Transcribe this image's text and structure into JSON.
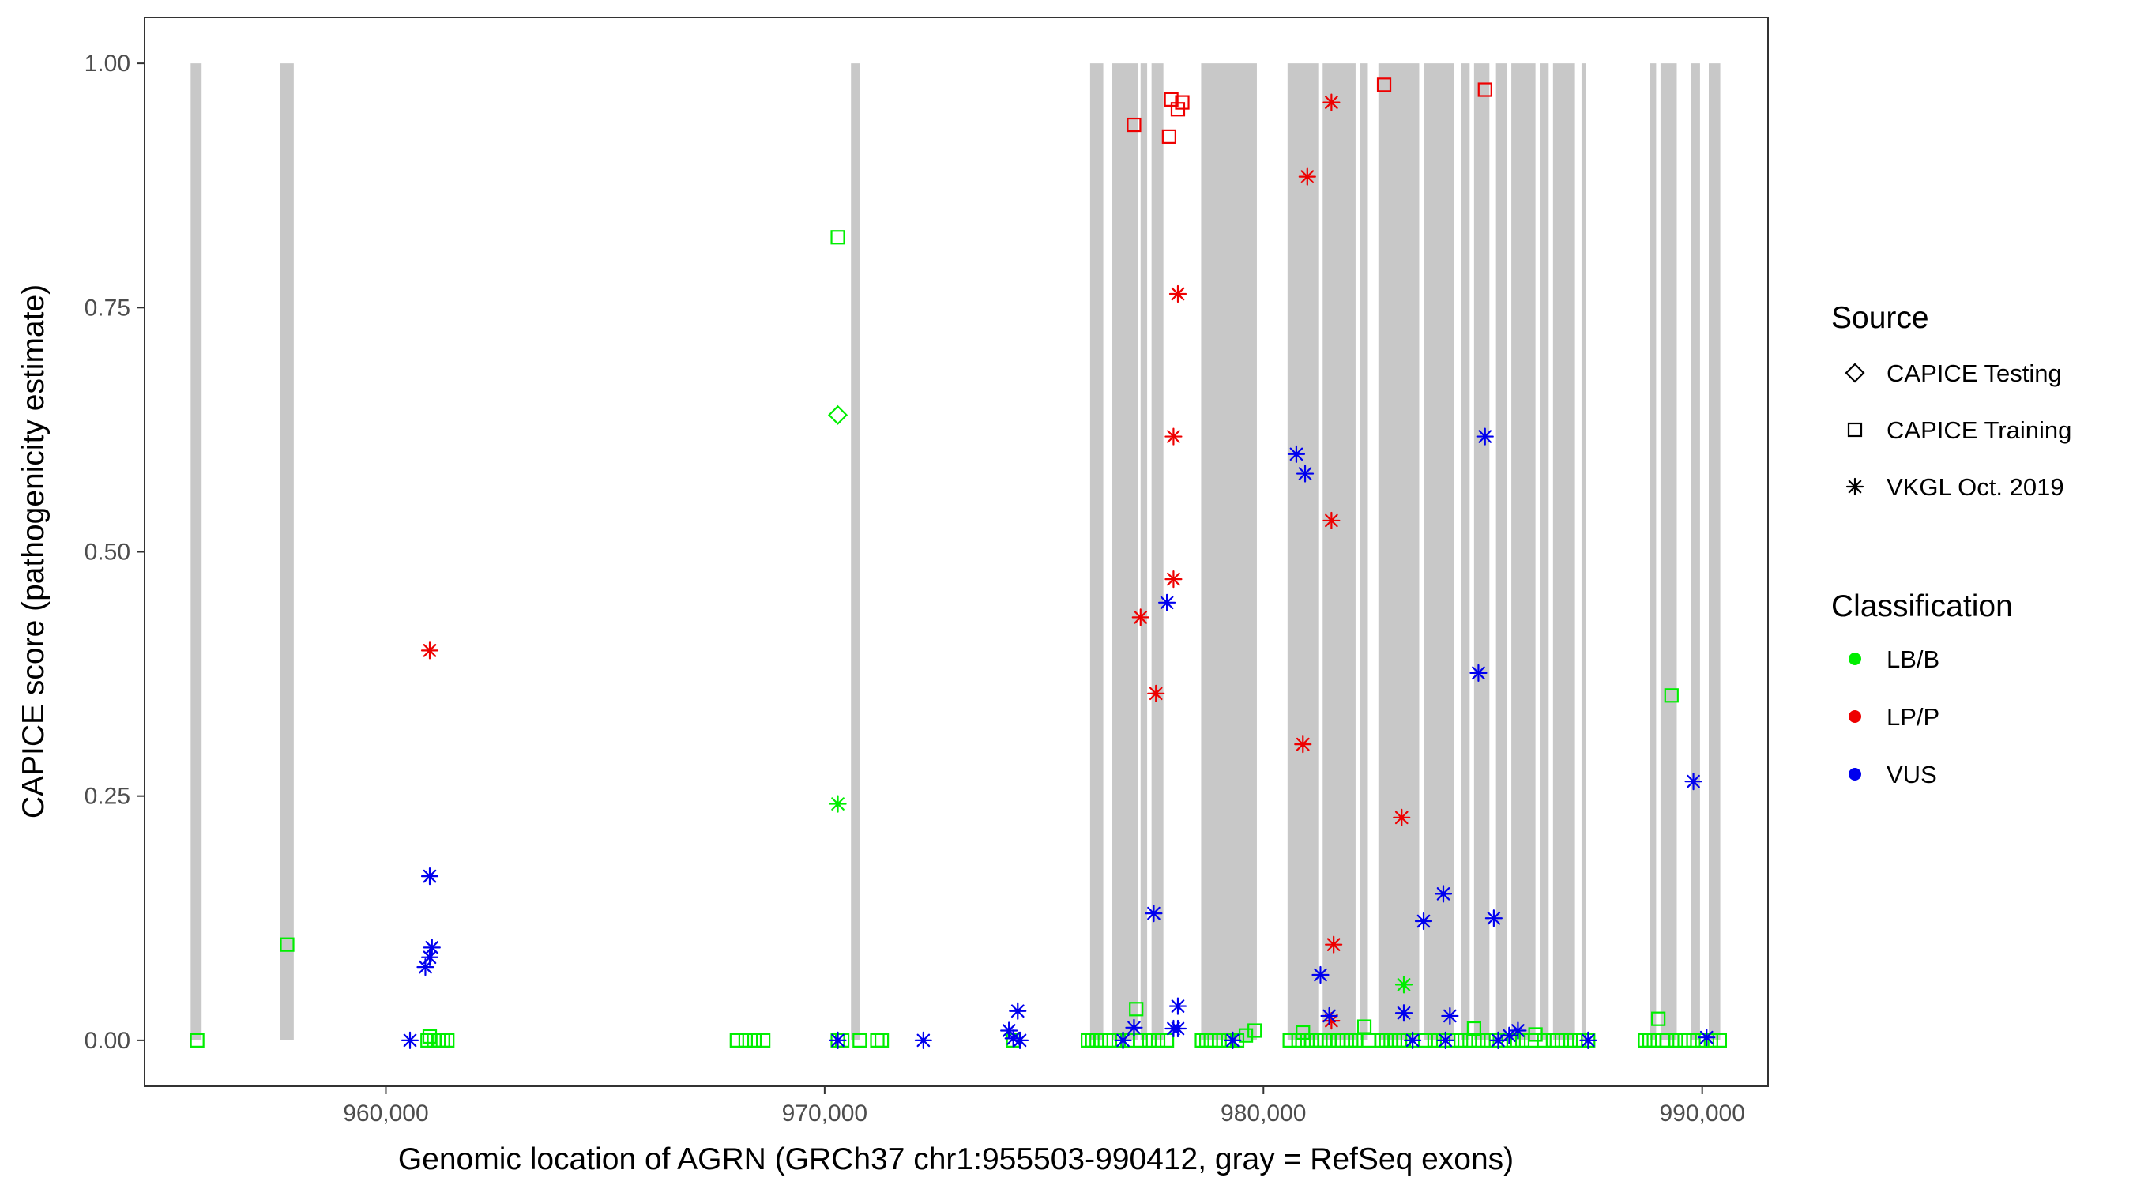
{
  "chart_data": {
    "type": "scatter",
    "xlabel": "Genomic location of AGRN (GRCh37 chr1:955503-990412, gray = RefSeq exons)",
    "ylabel": "CAPICE score (pathogenicity estimate)",
    "xlim": [
      954500,
      991500
    ],
    "ylim": [
      -0.047,
      1.047
    ],
    "x_ticks": [
      960000,
      970000,
      980000,
      990000
    ],
    "x_tick_labels": [
      "960,000",
      "970,000",
      "980,000",
      "990,000"
    ],
    "y_ticks": [
      0,
      0.25,
      0.5,
      0.75,
      1.0
    ],
    "y_tick_labels": [
      "0.00",
      "0.25",
      "0.50",
      "0.75",
      "1.00"
    ],
    "grid": false,
    "legend_position": "right",
    "exon_color": "#c8c8c8",
    "exons": [
      [
        955550,
        955800
      ],
      [
        957580,
        957900
      ],
      [
        970600,
        970800
      ],
      [
        976050,
        976350
      ],
      [
        976550,
        977150
      ],
      [
        977200,
        977350
      ],
      [
        977450,
        977720
      ],
      [
        978580,
        979850
      ],
      [
        980550,
        981250
      ],
      [
        981350,
        982100
      ],
      [
        982200,
        982380
      ],
      [
        982620,
        983550
      ],
      [
        983650,
        984350
      ],
      [
        984500,
        984700
      ],
      [
        984800,
        985150
      ],
      [
        985300,
        985550
      ],
      [
        985650,
        986200
      ],
      [
        986300,
        986500
      ],
      [
        986600,
        987100
      ],
      [
        987250,
        987350
      ],
      [
        988800,
        988950
      ],
      [
        989050,
        989420
      ],
      [
        989750,
        989950
      ],
      [
        990150,
        990412
      ]
    ],
    "legend": {
      "source_title": "Source",
      "source_items": [
        {
          "label": "CAPICE Testing",
          "shape": "diamond"
        },
        {
          "label": "CAPICE Training",
          "shape": "square"
        },
        {
          "label": "VKGL Oct. 2019",
          "shape": "asterisk"
        }
      ],
      "class_title": "Classification",
      "class_items": [
        {
          "label": "LB/B",
          "color": "#00ee00"
        },
        {
          "label": "LP/P",
          "color": "#ee0000"
        },
        {
          "label": "VUS",
          "color": "#0000ee"
        }
      ]
    },
    "colors": {
      "LB/B": "#00ee00",
      "LP/P": "#ee0000",
      "VUS": "#0000ee"
    },
    "series": [
      {
        "shape": "square",
        "class": "LB/B",
        "points": [
          [
            955700,
            0.0
          ],
          [
            957750,
            0.098
          ],
          [
            960950,
            0.0
          ],
          [
            961000,
            0.004
          ],
          [
            961100,
            0.0
          ],
          [
            961200,
            0.0
          ],
          [
            961300,
            0.0
          ],
          [
            961400,
            0.0
          ],
          [
            968000,
            0.0
          ],
          [
            968200,
            0.0
          ],
          [
            968400,
            0.0
          ],
          [
            968600,
            0.0
          ],
          [
            970300,
            0.822
          ],
          [
            970300,
            0.0
          ],
          [
            970400,
            0.0
          ],
          [
            970800,
            0.0
          ],
          [
            971200,
            0.0
          ],
          [
            971300,
            0.0
          ],
          [
            974300,
            0.0
          ],
          [
            976000,
            0.0
          ],
          [
            976100,
            0.0
          ],
          [
            976200,
            0.0
          ],
          [
            976300,
            0.0
          ],
          [
            976500,
            0.0
          ],
          [
            976700,
            0.0
          ],
          [
            976900,
            0.0
          ],
          [
            977100,
            0.032
          ],
          [
            977200,
            0.0
          ],
          [
            977400,
            0.0
          ],
          [
            977600,
            0.0
          ],
          [
            977800,
            0.0
          ],
          [
            978600,
            0.0
          ],
          [
            978700,
            0.0
          ],
          [
            978800,
            0.0
          ],
          [
            979000,
            0.0
          ],
          [
            979200,
            0.0
          ],
          [
            979400,
            0.0
          ],
          [
            979600,
            0.005
          ],
          [
            979800,
            0.01
          ],
          [
            980600,
            0.0
          ],
          [
            980800,
            0.0
          ],
          [
            980900,
            0.008
          ],
          [
            981000,
            0.0
          ],
          [
            981100,
            0.0
          ],
          [
            981200,
            0.0
          ],
          [
            981300,
            0.0
          ],
          [
            981400,
            0.0
          ],
          [
            981500,
            0.0
          ],
          [
            981700,
            0.0
          ],
          [
            981800,
            0.0
          ],
          [
            981900,
            0.0
          ],
          [
            982000,
            0.0
          ],
          [
            982100,
            0.0
          ],
          [
            982300,
            0.014
          ],
          [
            982400,
            0.0
          ],
          [
            982700,
            0.0
          ],
          [
            982800,
            0.0
          ],
          [
            982900,
            0.0
          ],
          [
            983000,
            0.0
          ],
          [
            983100,
            0.0
          ],
          [
            983200,
            0.0
          ],
          [
            983400,
            0.0
          ],
          [
            983700,
            0.0
          ],
          [
            983900,
            0.0
          ],
          [
            984100,
            0.0
          ],
          [
            984300,
            0.0
          ],
          [
            984500,
            0.0
          ],
          [
            984700,
            0.0
          ],
          [
            984800,
            0.012
          ],
          [
            984900,
            0.0
          ],
          [
            985100,
            0.0
          ],
          [
            985300,
            0.0
          ],
          [
            985500,
            0.0
          ],
          [
            985700,
            0.0
          ],
          [
            985900,
            0.0
          ],
          [
            986100,
            0.0
          ],
          [
            986200,
            0.006
          ],
          [
            986400,
            0.0
          ],
          [
            986600,
            0.0
          ],
          [
            986800,
            0.0
          ],
          [
            987000,
            0.0
          ],
          [
            987200,
            0.0
          ],
          [
            987400,
            0.0
          ],
          [
            988700,
            0.0
          ],
          [
            988800,
            0.0
          ],
          [
            988900,
            0.0
          ],
          [
            989000,
            0.022
          ],
          [
            989100,
            0.0
          ],
          [
            989200,
            0.0
          ],
          [
            989300,
            0.353
          ],
          [
            989400,
            0.0
          ],
          [
            989600,
            0.0
          ],
          [
            989800,
            0.0
          ],
          [
            990000,
            0.0
          ],
          [
            990200,
            0.0
          ],
          [
            990400,
            0.0
          ]
        ]
      },
      {
        "shape": "square",
        "class": "LP/P",
        "points": [
          [
            977050,
            0.937
          ],
          [
            977850,
            0.925
          ],
          [
            977900,
            0.963
          ],
          [
            978050,
            0.953
          ],
          [
            978150,
            0.96
          ],
          [
            982750,
            0.978
          ],
          [
            985050,
            0.973
          ]
        ]
      },
      {
        "shape": "diamond",
        "class": "LB/B",
        "points": [
          [
            970300,
            0.64
          ]
        ]
      },
      {
        "shape": "asterisk",
        "class": "LB/B",
        "points": [
          [
            970300,
            0.242
          ],
          [
            983200,
            0.057
          ]
        ]
      },
      {
        "shape": "asterisk",
        "class": "LP/P",
        "points": [
          [
            961000,
            0.399
          ],
          [
            977200,
            0.433
          ],
          [
            977550,
            0.355
          ],
          [
            977950,
            0.472
          ],
          [
            977950,
            0.618
          ],
          [
            978050,
            0.764
          ],
          [
            980900,
            0.303
          ],
          [
            981000,
            0.884
          ],
          [
            981550,
            0.96
          ],
          [
            981550,
            0.532
          ],
          [
            981600,
            0.098
          ],
          [
            981550,
            0.02
          ],
          [
            983150,
            0.228
          ]
        ]
      },
      {
        "shape": "asterisk",
        "class": "VUS",
        "points": [
          [
            960550,
            0.0
          ],
          [
            960900,
            0.075
          ],
          [
            961000,
            0.085
          ],
          [
            961050,
            0.095
          ],
          [
            961000,
            0.168
          ],
          [
            970300,
            0.0
          ],
          [
            972250,
            0.0
          ],
          [
            974200,
            0.01
          ],
          [
            974300,
            0.002
          ],
          [
            974400,
            0.03
          ],
          [
            974450,
            0.0
          ],
          [
            976800,
            0.0
          ],
          [
            977050,
            0.013
          ],
          [
            977500,
            0.13
          ],
          [
            977800,
            0.448
          ],
          [
            977950,
            0.012
          ],
          [
            978050,
            0.035
          ],
          [
            978050,
            0.012
          ],
          [
            979300,
            0.0
          ],
          [
            980750,
            0.6
          ],
          [
            980950,
            0.58
          ],
          [
            981300,
            0.067
          ],
          [
            981500,
            0.025
          ],
          [
            983200,
            0.028
          ],
          [
            983400,
            0.0
          ],
          [
            983650,
            0.122
          ],
          [
            984100,
            0.15
          ],
          [
            984250,
            0.025
          ],
          [
            984150,
            0.0
          ],
          [
            984900,
            0.376
          ],
          [
            985050,
            0.618
          ],
          [
            985250,
            0.125
          ],
          [
            985350,
            0.0
          ],
          [
            985600,
            0.005
          ],
          [
            985800,
            0.01
          ],
          [
            987400,
            0.0
          ],
          [
            989800,
            0.265
          ],
          [
            990100,
            0.003
          ]
        ]
      }
    ]
  }
}
